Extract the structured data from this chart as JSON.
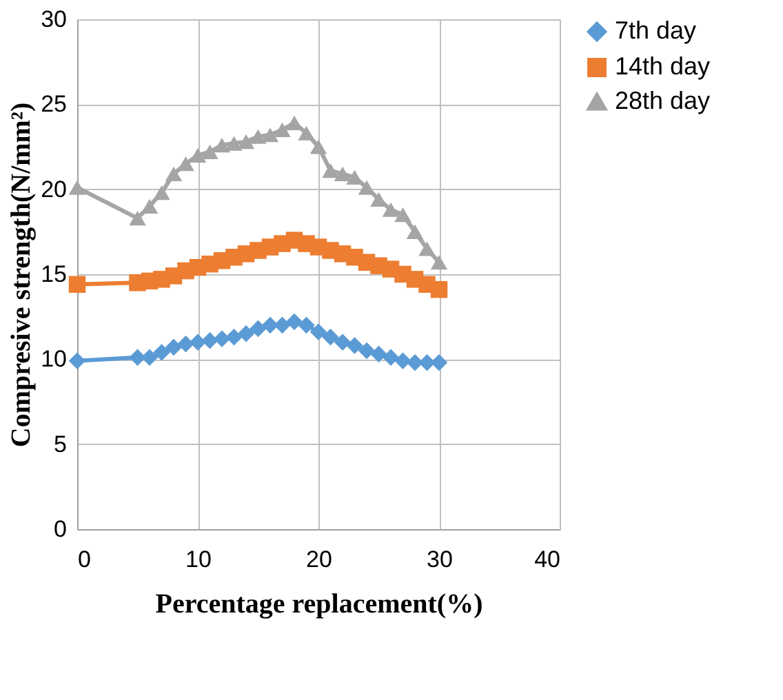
{
  "chart_data": {
    "type": "line",
    "xlabel": "Percentage replacement(%)",
    "ylabel": "Compresive strength(N/mm²)",
    "x": [
      0,
      5,
      6,
      7,
      8,
      9,
      10,
      11,
      12,
      13,
      14,
      15,
      16,
      17,
      18,
      19,
      20,
      21,
      22,
      23,
      24,
      25,
      26,
      27,
      28,
      29,
      30
    ],
    "series": [
      {
        "name": "7th day",
        "color": "#5b9bd5",
        "marker": "diamond",
        "values": [
          9.9,
          10.1,
          10.1,
          10.4,
          10.7,
          10.9,
          11.0,
          11.1,
          11.2,
          11.3,
          11.5,
          11.8,
          12.0,
          12.0,
          12.2,
          12.0,
          11.6,
          11.3,
          11.0,
          10.8,
          10.5,
          10.3,
          10.1,
          9.9,
          9.8,
          9.8,
          9.8
        ]
      },
      {
        "name": "14th day",
        "color": "#ed7d31",
        "marker": "square",
        "values": [
          14.4,
          14.5,
          14.6,
          14.7,
          14.9,
          15.2,
          15.4,
          15.6,
          15.8,
          16.0,
          16.2,
          16.4,
          16.6,
          16.8,
          17.0,
          16.8,
          16.6,
          16.4,
          16.2,
          16.0,
          15.7,
          15.5,
          15.3,
          15.0,
          14.7,
          14.4,
          14.1
        ]
      },
      {
        "name": "28th day",
        "color": "#a5a5a5",
        "marker": "triangle",
        "values": [
          20.1,
          18.3,
          19.0,
          19.8,
          20.9,
          21.5,
          22.0,
          22.2,
          22.6,
          22.7,
          22.8,
          23.1,
          23.2,
          23.5,
          23.9,
          23.3,
          22.5,
          21.1,
          20.9,
          20.7,
          20.1,
          19.4,
          18.8,
          18.5,
          17.5,
          16.5,
          15.7
        ]
      }
    ],
    "xlim": [
      0,
      40
    ],
    "xticks": [
      0,
      10,
      20,
      30,
      40
    ],
    "ylim": [
      0,
      30
    ],
    "yticks": [
      0,
      5,
      10,
      15,
      20,
      25,
      30
    ],
    "grid": true,
    "legend": "right"
  }
}
